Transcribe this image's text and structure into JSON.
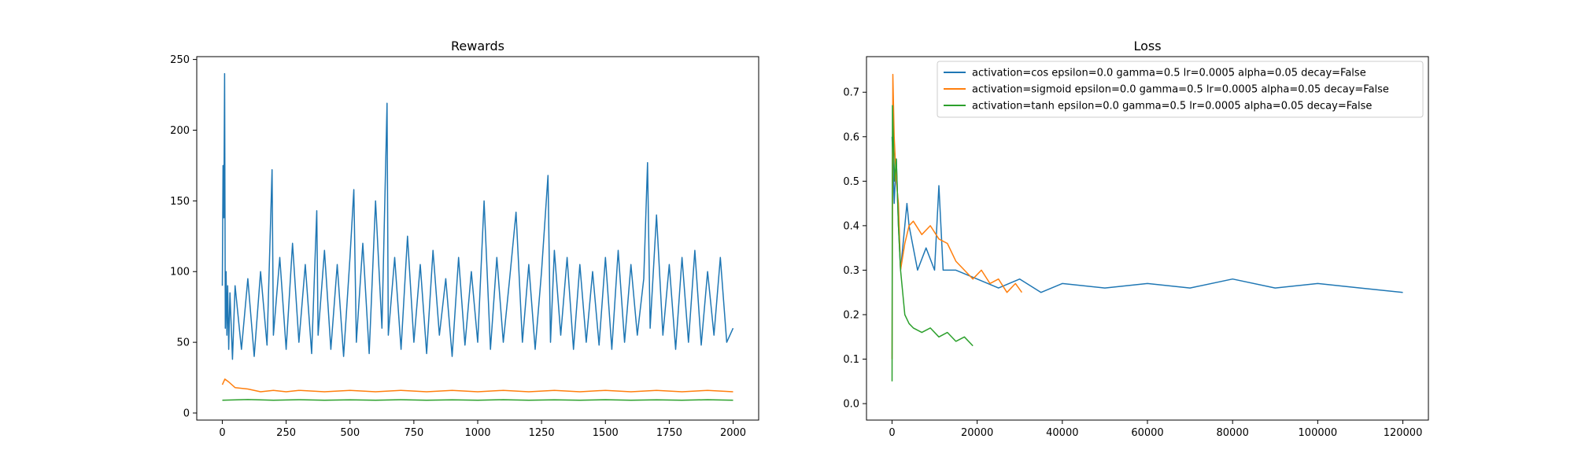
{
  "chart_data": [
    {
      "type": "line",
      "title": "Rewards",
      "xlabel": "",
      "ylabel": "",
      "xlim": [
        -100,
        2100
      ],
      "ylim": [
        -5,
        252
      ],
      "x_ticks": [
        0,
        250,
        500,
        750,
        1000,
        1250,
        1500,
        1750,
        2000
      ],
      "y_ticks": [
        0,
        50,
        100,
        150,
        200,
        250
      ],
      "grid": false,
      "legend": "none",
      "series": [
        {
          "color": "#1f77b4",
          "x": [
            0,
            3,
            6,
            9,
            12,
            15,
            18,
            21,
            25,
            30,
            40,
            50,
            75,
            100,
            125,
            150,
            175,
            195,
            200,
            225,
            250,
            275,
            300,
            325,
            350,
            370,
            375,
            400,
            425,
            450,
            475,
            500,
            515,
            525,
            550,
            575,
            600,
            625,
            645,
            650,
            675,
            700,
            725,
            750,
            775,
            800,
            825,
            850,
            875,
            900,
            925,
            950,
            975,
            1000,
            1025,
            1050,
            1075,
            1100,
            1125,
            1150,
            1175,
            1200,
            1225,
            1250,
            1275,
            1285,
            1300,
            1325,
            1350,
            1375,
            1400,
            1425,
            1450,
            1475,
            1500,
            1525,
            1550,
            1575,
            1600,
            1625,
            1650,
            1665,
            1675,
            1700,
            1725,
            1750,
            1775,
            1800,
            1825,
            1850,
            1875,
            1900,
            1925,
            1950,
            1975,
            2000
          ],
          "y": [
            90,
            175,
            138,
            240,
            60,
            100,
            55,
            90,
            45,
            85,
            38,
            90,
            45,
            95,
            40,
            100,
            48,
            172,
            55,
            110,
            45,
            120,
            50,
            105,
            42,
            143,
            55,
            115,
            45,
            105,
            40,
            110,
            158,
            50,
            120,
            42,
            150,
            60,
            219,
            55,
            110,
            45,
            125,
            50,
            105,
            42,
            115,
            55,
            95,
            40,
            110,
            48,
            100,
            50,
            150,
            45,
            110,
            50,
            95,
            142,
            50,
            105,
            45,
            100,
            168,
            50,
            115,
            55,
            110,
            45,
            105,
            50,
            100,
            48,
            110,
            45,
            115,
            50,
            105,
            55,
            95,
            177,
            60,
            140,
            55,
            105,
            45,
            110,
            50,
            115,
            48,
            100,
            55,
            110,
            50,
            60
          ]
        },
        {
          "color": "#ff7f0e",
          "x": [
            0,
            10,
            25,
            50,
            100,
            150,
            200,
            250,
            300,
            400,
            500,
            600,
            700,
            800,
            900,
            1000,
            1100,
            1200,
            1300,
            1400,
            1500,
            1600,
            1700,
            1800,
            1900,
            2000
          ],
          "y": [
            20,
            24,
            22,
            18,
            17,
            15,
            16,
            15,
            16,
            15,
            16,
            15,
            16,
            15,
            16,
            15,
            16,
            15,
            16,
            15,
            16,
            15,
            16,
            15,
            16,
            15
          ]
        },
        {
          "color": "#2ca02c",
          "x": [
            0,
            100,
            200,
            300,
            400,
            500,
            600,
            700,
            800,
            900,
            1000,
            1100,
            1200,
            1300,
            1400,
            1500,
            1600,
            1700,
            1800,
            1900,
            2000
          ],
          "y": [
            9,
            9.5,
            9,
            9.4,
            9,
            9.3,
            9,
            9.4,
            9,
            9.3,
            9,
            9.4,
            9,
            9.3,
            9,
            9.4,
            9,
            9.3,
            9,
            9.4,
            9
          ]
        }
      ]
    },
    {
      "type": "line",
      "title": "Loss",
      "xlabel": "",
      "ylabel": "",
      "xlim": [
        -6000,
        126000
      ],
      "ylim": [
        -0.037,
        0.78
      ],
      "x_ticks": [
        0,
        20000,
        40000,
        60000,
        80000,
        100000,
        120000
      ],
      "y_ticks": [
        0.0,
        0.1,
        0.2,
        0.3,
        0.4,
        0.5,
        0.6,
        0.7
      ],
      "grid": false,
      "legend": "upper right",
      "series": [
        {
          "name": "activation=cos epsilon=0.0 gamma=0.5 lr=0.0005 alpha=0.05 decay=False",
          "color": "#1f77b4",
          "x": [
            0,
            200,
            500,
            1000,
            1500,
            2000,
            2500,
            3000,
            3500,
            4000,
            5000,
            6000,
            8000,
            10000,
            11000,
            12000,
            15000,
            20000,
            25000,
            30000,
            35000,
            40000,
            50000,
            60000,
            70000,
            80000,
            90000,
            100000,
            110000,
            120000
          ],
          "y": [
            0.6,
            0.55,
            0.45,
            0.55,
            0.4,
            0.3,
            0.35,
            0.4,
            0.45,
            0.4,
            0.35,
            0.3,
            0.35,
            0.3,
            0.49,
            0.3,
            0.3,
            0.28,
            0.26,
            0.28,
            0.25,
            0.27,
            0.26,
            0.27,
            0.26,
            0.28,
            0.26,
            0.27,
            0.26,
            0.25
          ]
        },
        {
          "name": "activation=sigmoid epsilon=0.0 gamma=0.5 lr=0.0005 alpha=0.05 decay=False",
          "color": "#ff7f0e",
          "x": [
            0,
            200,
            500,
            1000,
            1500,
            2000,
            3000,
            4000,
            5000,
            7000,
            9000,
            11000,
            13000,
            15000,
            17000,
            19000,
            21000,
            23000,
            25000,
            27000,
            29000,
            30500
          ],
          "y": [
            0.1,
            0.74,
            0.6,
            0.5,
            0.45,
            0.3,
            0.36,
            0.4,
            0.41,
            0.38,
            0.4,
            0.37,
            0.36,
            0.32,
            0.3,
            0.28,
            0.3,
            0.27,
            0.28,
            0.25,
            0.27,
            0.25
          ]
        },
        {
          "name": "activation=tanh epsilon=0.0 gamma=0.5 lr=0.0005 alpha=0.05 decay=False",
          "color": "#2ca02c",
          "x": [
            0,
            100,
            300,
            600,
            1000,
            1500,
            2000,
            3000,
            4000,
            5000,
            7000,
            9000,
            11000,
            13000,
            15000,
            17000,
            19000
          ],
          "y": [
            0.05,
            0.67,
            0.6,
            0.5,
            0.55,
            0.4,
            0.3,
            0.2,
            0.18,
            0.17,
            0.16,
            0.17,
            0.15,
            0.16,
            0.14,
            0.15,
            0.13
          ]
        }
      ]
    }
  ]
}
